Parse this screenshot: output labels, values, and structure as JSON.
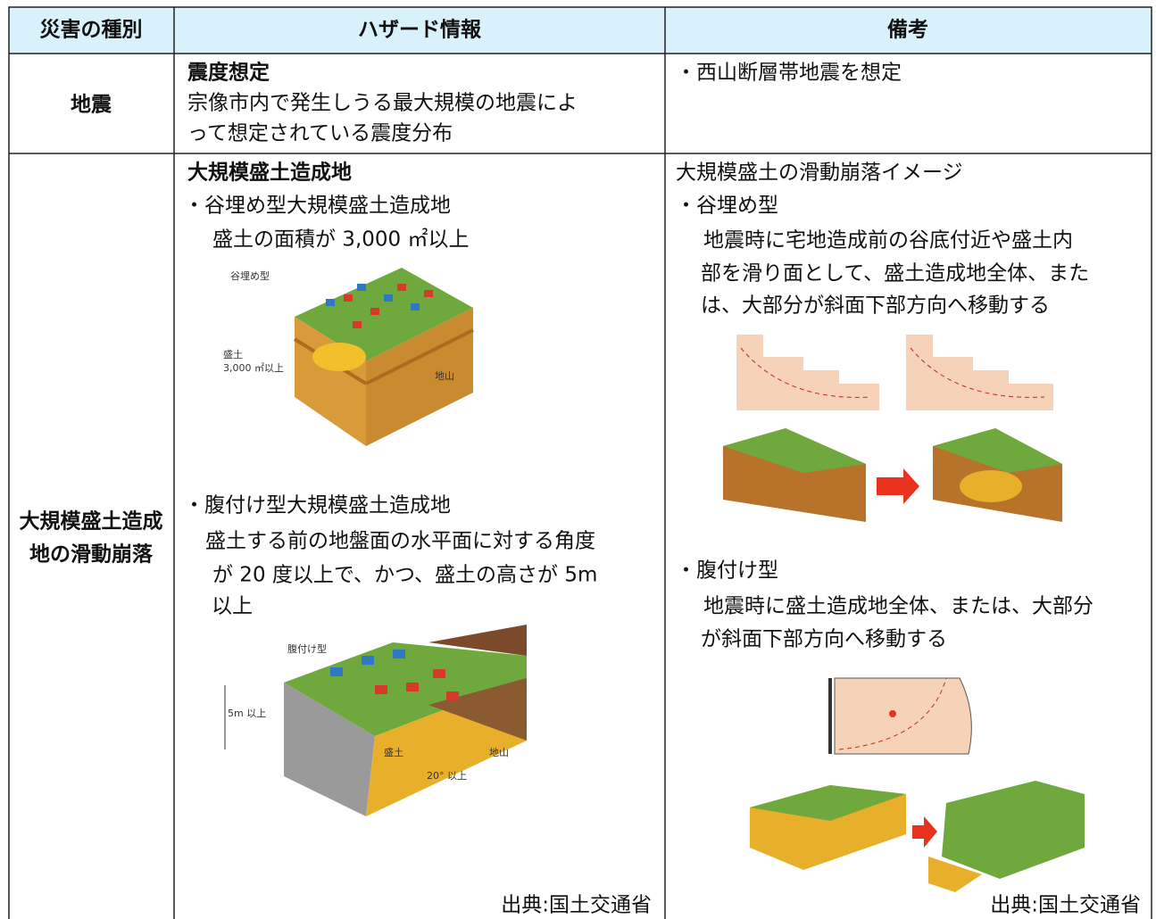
{
  "table": {
    "header": [
      "災害の種別",
      "ハザード情報",
      "備考"
    ],
    "rows": [
      {
        "type": [
          "地震"
        ],
        "hazard": {
          "title": "震度想定",
          "lines": [
            "宗像市内で発生しうる最大規模の地震によ",
            "って想定されている震度分布"
          ]
        },
        "note": {
          "lines": [
            "・西山断層帯地震を想定"
          ]
        }
      },
      {
        "type": [
          "大規模盛土造成",
          "地の滑動崩落"
        ],
        "hazard": {
          "title": "大規模盛土造成地",
          "items": [
            {
              "heading": "・谷埋め型大規模盛土造成地",
              "lines": [
                "盛土の面積が 3,000 ㎡以上"
              ],
              "figure": {
                "title": "谷埋め型",
                "fill": "盛土",
                "fill_area": "3,000 ㎡以上",
                "ground": "地山"
              }
            },
            {
              "heading": "・腹付け型大規模盛土造成地",
              "lines": [
                "盛土する前の地盤面の水平面に対する角度",
                "が 20 度以上で、かつ、盛土の高さが 5m",
                "以上"
              ],
              "figure": {
                "title": "腹付け型",
                "height": "5m 以上",
                "fill": "盛土",
                "ground": "地山",
                "angle": "20° 以上"
              }
            }
          ],
          "source": "出典:国土交通省"
        },
        "note": {
          "title": "大規模盛土の滑動崩落イメージ",
          "items": [
            {
              "heading": "・谷埋め型",
              "lines": [
                "地震時に宅地造成前の谷底付近や盛土内",
                "部を滑り面として、盛土造成地全体、また",
                "は、大部分が斜面下部方向へ移動する"
              ]
            },
            {
              "heading": "・腹付け型",
              "lines": [
                "地震時に盛土造成地全体、または、大部分",
                "が斜面下部方向へ移動する"
              ]
            }
          ],
          "source": "出典:国土交通省"
        }
      }
    ]
  }
}
